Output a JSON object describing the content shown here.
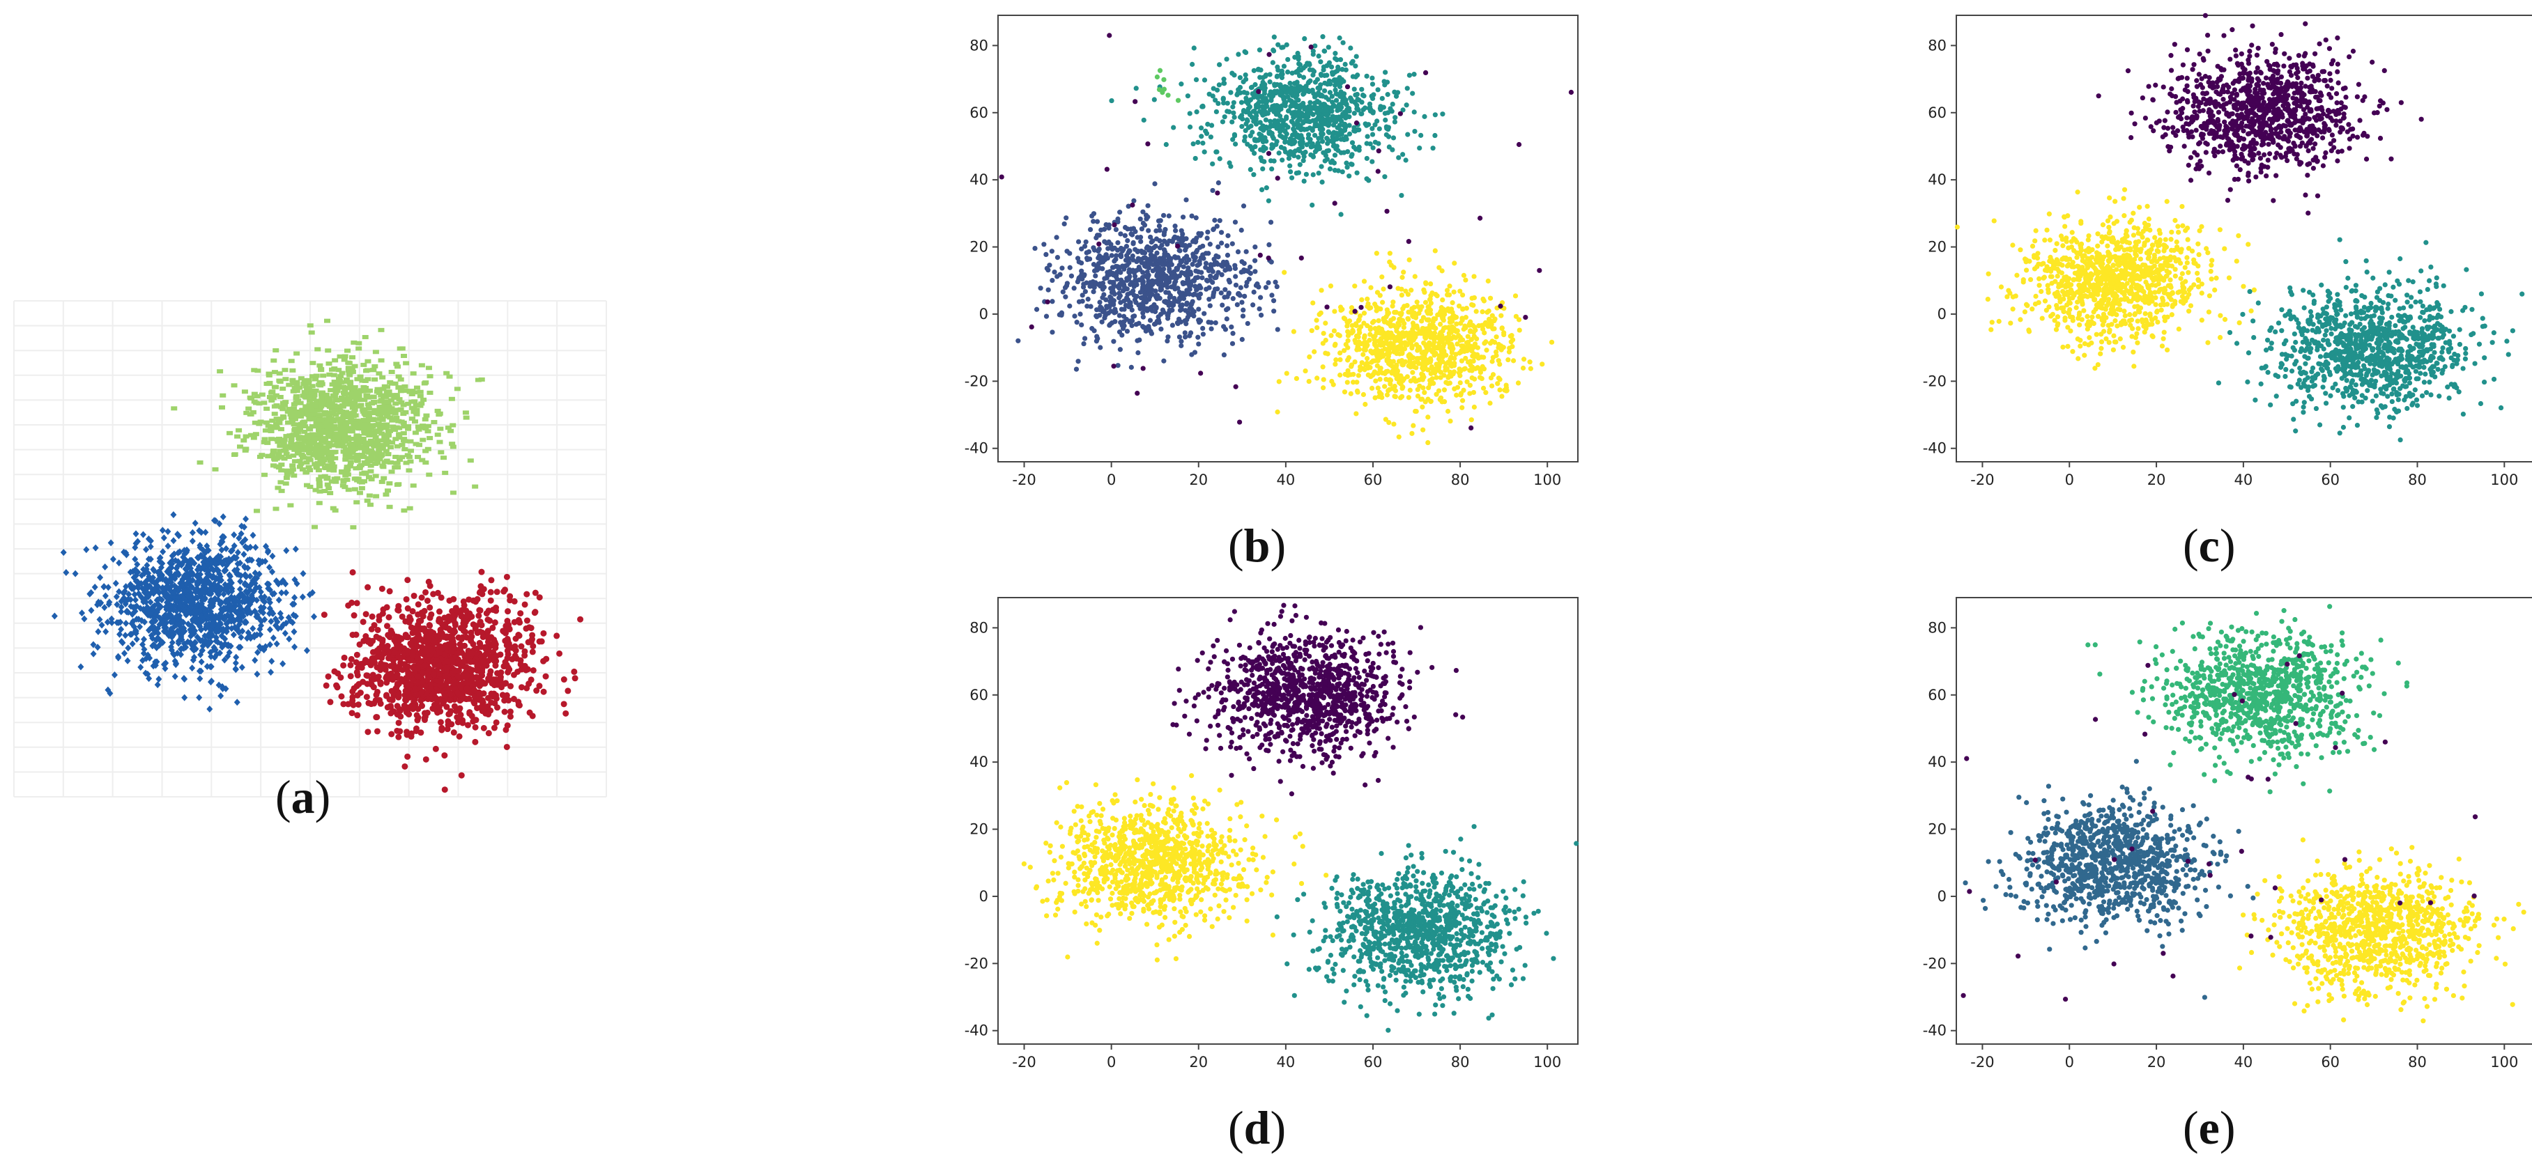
{
  "chart_data": [
    {
      "id": "a",
      "type": "scatter",
      "caption": "a",
      "grid": true,
      "axes_visible": false,
      "xlim": [
        -35,
        110
      ],
      "ylim": [
        -45,
        95
      ],
      "xticks": [],
      "yticks": [],
      "series": [
        {
          "center": [
            10,
            10
          ],
          "spread": [
            11,
            9
          ],
          "count": 1200,
          "color": "#1f5fae",
          "marker": "diamond"
        },
        {
          "center": [
            45,
            60
          ],
          "spread": [
            11,
            9
          ],
          "count": 1200,
          "color": "#9ed36a",
          "marker": "square"
        },
        {
          "center": [
            70,
            -8
          ],
          "spread": [
            11,
            9
          ],
          "count": 1200,
          "color": "#b7182b",
          "marker": "circle"
        }
      ]
    },
    {
      "id": "b",
      "type": "scatter",
      "caption": "b",
      "grid": false,
      "axes_visible": true,
      "xlim": [
        -26,
        107
      ],
      "ylim": [
        -44,
        89
      ],
      "xticks": [
        -20,
        0,
        20,
        40,
        60,
        80,
        100
      ],
      "yticks": [
        -40,
        -20,
        0,
        20,
        40,
        60,
        80
      ],
      "series": [
        {
          "center": [
            10,
            10
          ],
          "spread": [
            11,
            9
          ],
          "count": 950,
          "color": "#3b528b",
          "marker": "circle"
        },
        {
          "center": [
            44,
            60
          ],
          "spread": [
            11,
            9
          ],
          "count": 950,
          "color": "#21918c",
          "marker": "circle"
        },
        {
          "center": [
            70,
            -10
          ],
          "spread": [
            11,
            9
          ],
          "count": 950,
          "color": "#fde725",
          "marker": "circle"
        },
        {
          "center": [
            40,
            20
          ],
          "spread": [
            36,
            36
          ],
          "count": 55,
          "color": "#440154",
          "marker": "circle"
        },
        {
          "center": [
            12,
            66
          ],
          "spread": [
            2,
            3
          ],
          "count": 8,
          "color": "#5ec962",
          "marker": "circle"
        }
      ]
    },
    {
      "id": "c",
      "type": "scatter",
      "caption": "c",
      "grid": false,
      "axes_visible": true,
      "xlim": [
        -26,
        107
      ],
      "ylim": [
        -44,
        89
      ],
      "xticks": [
        -20,
        0,
        20,
        40,
        60,
        80,
        100
      ],
      "yticks": [
        -40,
        -20,
        0,
        20,
        40,
        60,
        80
      ],
      "series": [
        {
          "center": [
            10,
            10
          ],
          "spread": [
            11,
            9
          ],
          "count": 1000,
          "color": "#fde725",
          "marker": "circle"
        },
        {
          "center": [
            44,
            60
          ],
          "spread": [
            11,
            9
          ],
          "count": 1000,
          "color": "#440154",
          "marker": "circle"
        },
        {
          "center": [
            70,
            -10
          ],
          "spread": [
            11,
            9
          ],
          "count": 1000,
          "color": "#21918c",
          "marker": "circle"
        }
      ]
    },
    {
      "id": "d",
      "type": "scatter",
      "caption": "d",
      "grid": false,
      "axes_visible": true,
      "xlim": [
        -26,
        107
      ],
      "ylim": [
        -44,
        89
      ],
      "xticks": [
        -20,
        0,
        20,
        40,
        60,
        80,
        100
      ],
      "yticks": [
        -40,
        -20,
        0,
        20,
        40,
        60,
        80
      ],
      "series": [
        {
          "center": [
            10,
            10
          ],
          "spread": [
            11,
            9
          ],
          "count": 1000,
          "color": "#fde725",
          "marker": "circle"
        },
        {
          "center": [
            44,
            60
          ],
          "spread": [
            11,
            9
          ],
          "count": 1000,
          "color": "#440154",
          "marker": "circle"
        },
        {
          "center": [
            70,
            -10
          ],
          "spread": [
            11,
            9
          ],
          "count": 1000,
          "color": "#21918c",
          "marker": "circle"
        }
      ]
    },
    {
      "id": "e",
      "type": "scatter",
      "caption": "e",
      "grid": false,
      "axes_visible": true,
      "xlim": [
        -26,
        107
      ],
      "ylim": [
        -44,
        89
      ],
      "xticks": [
        -20,
        0,
        20,
        40,
        60,
        80,
        100
      ],
      "yticks": [
        -40,
        -20,
        0,
        20,
        40,
        60,
        80
      ],
      "series": [
        {
          "center": [
            10,
            10
          ],
          "spread": [
            11,
            9
          ],
          "count": 950,
          "color": "#31688e",
          "marker": "circle"
        },
        {
          "center": [
            44,
            60
          ],
          "spread": [
            11,
            9
          ],
          "count": 950,
          "color": "#35b779",
          "marker": "circle"
        },
        {
          "center": [
            70,
            -10
          ],
          "spread": [
            11,
            9
          ],
          "count": 950,
          "color": "#fde725",
          "marker": "circle"
        },
        {
          "center": [
            40,
            20
          ],
          "spread": [
            36,
            36
          ],
          "count": 45,
          "color": "#440154",
          "marker": "circle"
        }
      ]
    }
  ]
}
